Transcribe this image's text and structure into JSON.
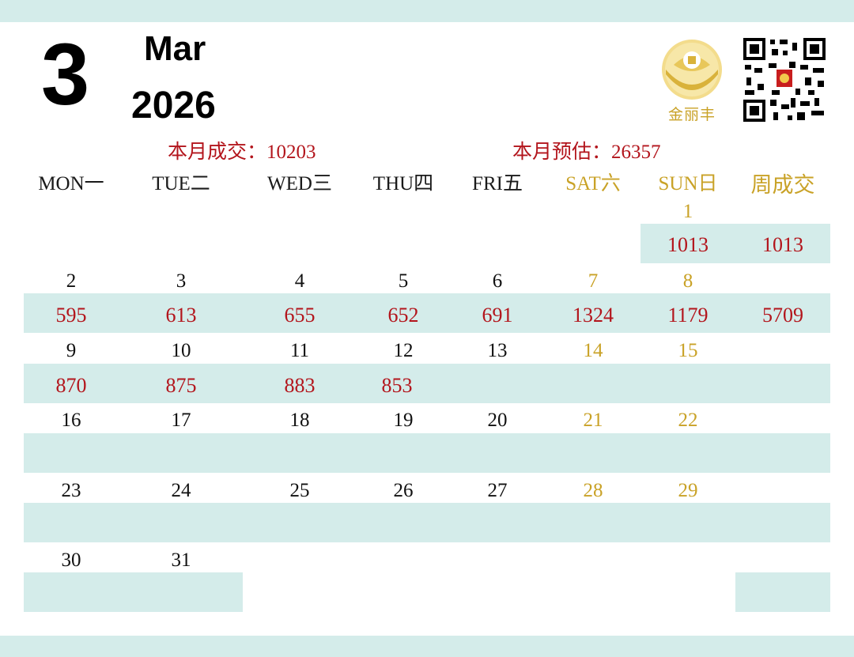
{
  "header": {
    "month_number": "3",
    "month_name": "Mar",
    "year": "2026",
    "logo_text": "金丽丰"
  },
  "stats": {
    "month_deals": "本月成交：10203",
    "month_estimate": "本月预估：26357"
  },
  "columns": [
    "MON一",
    "TUE二",
    "WED三",
    "THU四",
    "FRI五",
    "SAT六",
    "SUN日",
    "周成交"
  ],
  "weeks": [
    {
      "days": [
        "",
        "",
        "",
        "",
        "",
        "",
        "1"
      ],
      "values": [
        "",
        "",
        "",
        "",
        "",
        "",
        "1013"
      ],
      "weekly": "1013"
    },
    {
      "days": [
        "2",
        "3",
        "4",
        "5",
        "6",
        "7",
        "8"
      ],
      "values": [
        "595",
        "613",
        "655",
        "652",
        "691",
        "1324",
        "1179"
      ],
      "weekly": "5709"
    },
    {
      "days": [
        "9",
        "10",
        "11",
        "12",
        "13",
        "14",
        "15"
      ],
      "values": [
        "870",
        "875",
        "883",
        "853",
        "",
        "",
        ""
      ],
      "weekly": ""
    },
    {
      "days": [
        "16",
        "17",
        "18",
        "19",
        "20",
        "21",
        "22"
      ],
      "values": [
        "",
        "",
        "",
        "",
        "",
        "",
        ""
      ],
      "weekly": ""
    },
    {
      "days": [
        "23",
        "24",
        "25",
        "26",
        "27",
        "28",
        "29"
      ],
      "values": [
        "",
        "",
        "",
        "",
        "",
        "",
        ""
      ],
      "weekly": ""
    },
    {
      "days": [
        "30",
        "31",
        "",
        "",
        "",
        "",
        ""
      ],
      "values": [
        "",
        "",
        "",
        "",
        "",
        "",
        ""
      ],
      "weekly": ""
    }
  ],
  "colors": {
    "band": "#d4ecea",
    "value_red": "#b3151c",
    "weekend_gold": "#c9a227",
    "text": "#111111"
  },
  "icons": [
    "gold-ingot-logo-icon",
    "qr-code-icon"
  ]
}
